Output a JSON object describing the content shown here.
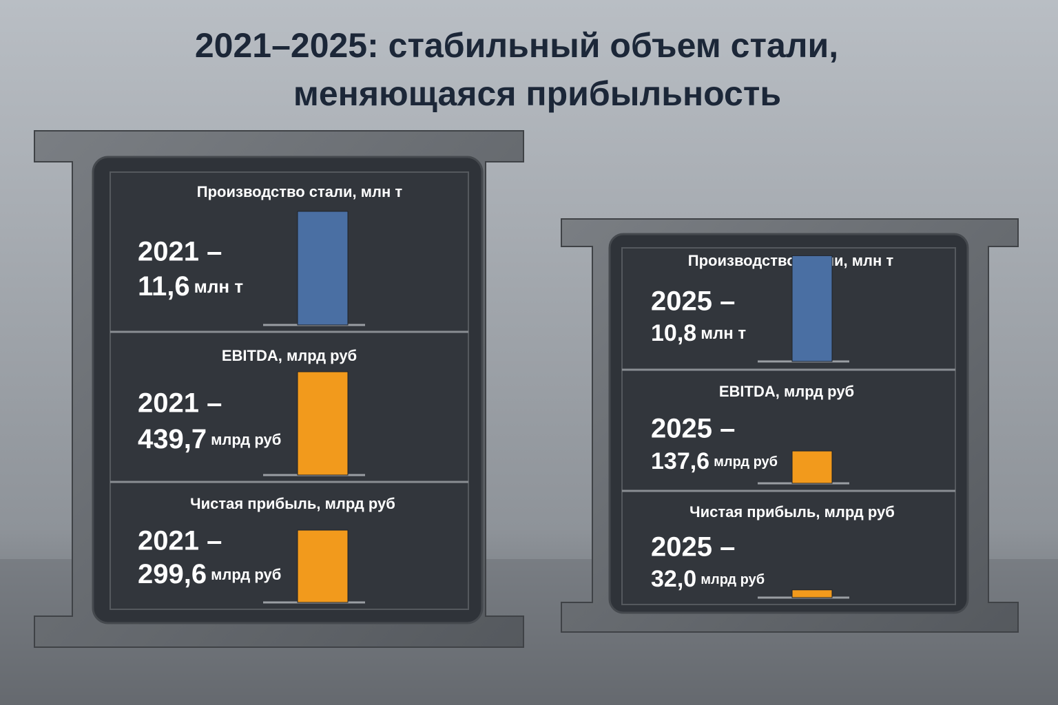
{
  "title": [
    "2021–2025: стабильный объем стали,",
    "меняющаяся прибыльность"
  ],
  "chart_data": [
    {
      "type": "bar",
      "title": "Производство стали, млн т",
      "categories": [
        "2021 –"
      ],
      "values": [
        11.6
      ],
      "value_labels": [
        "11,6"
      ],
      "unit": "млн т",
      "color": "#4a6fa3"
    },
    {
      "type": "bar",
      "title": "EBITDA, млрд руб",
      "categories": [
        "2021 –"
      ],
      "values": [
        439.7
      ],
      "value_labels": [
        "439,7"
      ],
      "unit": "млрд руб",
      "color": "#f29a1c"
    },
    {
      "type": "bar",
      "title": "Чистая прибыль, млрд руб",
      "categories": [
        "2021 –"
      ],
      "values": [
        299.6
      ],
      "value_labels": [
        "299,6"
      ],
      "unit": "млрд руб",
      "color": "#f29a1c"
    },
    {
      "type": "bar",
      "title": "Производство стали, млн т",
      "categories": [
        "2025 –"
      ],
      "values": [
        10.8
      ],
      "value_labels": [
        "10,8"
      ],
      "unit": "млн т",
      "color": "#4a6fa3"
    },
    {
      "type": "bar",
      "title": "EBITDA, млрд руб",
      "categories": [
        "2025 –"
      ],
      "values": [
        137.6
      ],
      "value_labels": [
        "137,6"
      ],
      "unit": "млрд руб",
      "color": "#f29a1c"
    },
    {
      "type": "bar",
      "title": "Чистая прибыль, млрд руб",
      "categories": [
        "2025 –"
      ],
      "values": [
        32.0
      ],
      "value_labels": [
        "32,0"
      ],
      "unit": "млрд руб",
      "color": "#f29a1c"
    }
  ]
}
